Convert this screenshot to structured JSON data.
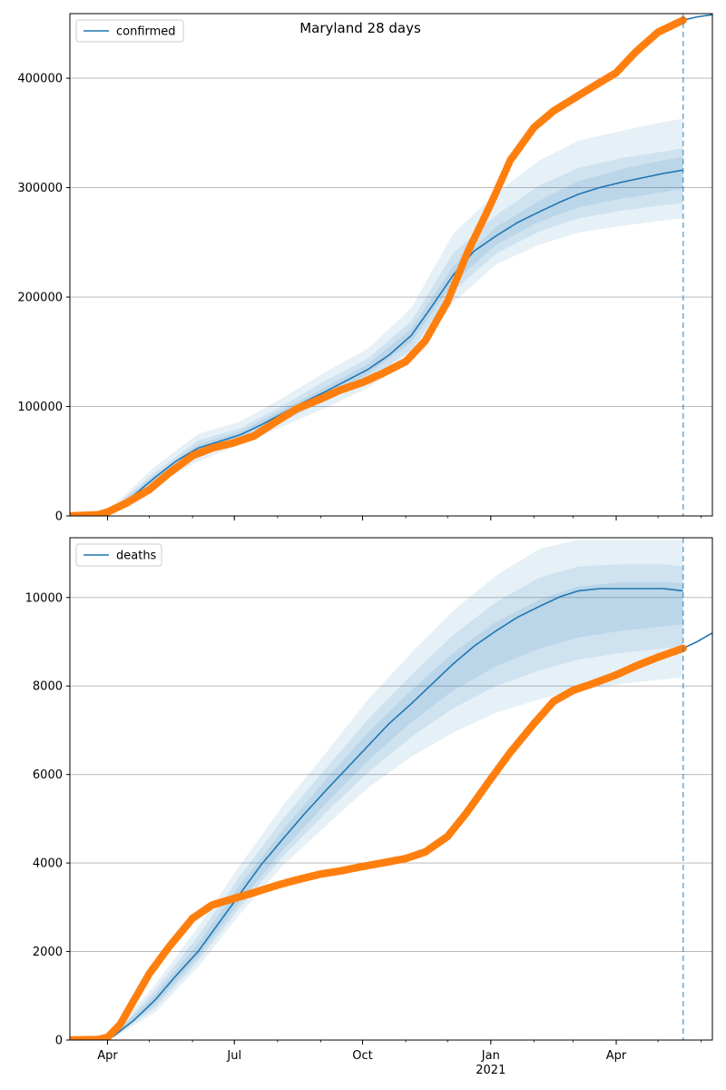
{
  "chart_data": [
    {
      "type": "line",
      "title": "Maryland 28 days",
      "xlabel": "",
      "ylabel": "",
      "legend": {
        "entries": [
          "confirmed"
        ],
        "placement": "top-left"
      },
      "grid": "horizontal",
      "xlim": [
        "2020-03-05",
        "2021-06-09"
      ],
      "ylim": [
        0,
        459000
      ],
      "yticks": [
        0,
        100000,
        200000,
        300000,
        400000
      ],
      "ytick_labels": [
        "0",
        "100000",
        "200000",
        "300000",
        "400000"
      ],
      "xticks": [
        "2020-04-01",
        "2020-07-01",
        "2020-10-01",
        "2021-01-01",
        "2021-04-01"
      ],
      "xtick_labels": [
        "Apr",
        "Jul",
        "Oct",
        "Jan",
        "Apr"
      ],
      "xtick_sublabels": [
        "",
        "",
        "",
        "2021",
        ""
      ],
      "forecast_start": "2021-05-19",
      "series": [
        {
          "name": "confirmed",
          "role": "model-median",
          "color": "#1f77b4",
          "x": [
            "2020-03-05",
            "2020-03-20",
            "2020-04-05",
            "2020-04-20",
            "2020-05-05",
            "2020-05-20",
            "2020-06-05",
            "2020-06-20",
            "2020-07-05",
            "2020-07-20",
            "2020-08-05",
            "2020-08-20",
            "2020-09-05",
            "2020-09-20",
            "2020-10-05",
            "2020-10-20",
            "2020-11-05",
            "2020-11-20",
            "2020-12-05",
            "2020-12-20",
            "2021-01-05",
            "2021-01-20",
            "2021-02-05",
            "2021-02-20",
            "2021-03-05",
            "2021-03-20",
            "2021-04-05",
            "2021-04-20",
            "2021-05-05",
            "2021-05-19"
          ],
          "y": [
            0,
            0,
            5000,
            19000,
            35000,
            50000,
            62000,
            68000,
            74000,
            83000,
            94000,
            104000,
            114000,
            124000,
            134000,
            147000,
            165000,
            192000,
            220000,
            242000,
            256000,
            268000,
            278000,
            287000,
            294000,
            300000,
            305000,
            309000,
            313000,
            316000
          ]
        },
        {
          "name": "",
          "role": "uncertainty-band",
          "color": "#1f77b4",
          "x": [
            "2020-04-05",
            "2020-05-05",
            "2020-06-05",
            "2020-07-05",
            "2020-08-05",
            "2020-09-05",
            "2020-10-05",
            "2020-11-05",
            "2020-12-05",
            "2021-01-05",
            "2021-02-05",
            "2021-03-05",
            "2021-04-05",
            "2021-05-05",
            "2021-05-19"
          ],
          "bands": [
            {
              "lower": [
                2500,
                28000,
                50000,
                65000,
                82000,
                99000,
                117000,
                145000,
                195000,
                230000,
                248000,
                259000,
                265000,
                270000,
                272000
              ],
              "upper": [
                9500,
                45000,
                75000,
                86000,
                108000,
                132000,
                153000,
                190000,
                258000,
                295000,
                325000,
                343000,
                352000,
                360000,
                363000
              ]
            },
            {
              "lower": [
                3500,
                31000,
                55000,
                69000,
                87000,
                105000,
                124000,
                152000,
                205000,
                240000,
                260000,
                272000,
                279000,
                284000,
                286000
              ],
              "upper": [
                7500,
                40000,
                69000,
                80000,
                101000,
                124000,
                144000,
                178000,
                240000,
                275000,
                302000,
                318000,
                327000,
                333000,
                336000
              ]
            },
            {
              "lower": [
                4200,
                33000,
                59000,
                71500,
                90500,
                110000,
                129500,
                159000,
                213000,
                248000,
                269000,
                282000,
                290000,
                296000,
                299000
              ],
              "upper": [
                6000,
                37500,
                65500,
                77000,
                97500,
                118000,
                139000,
                171000,
                228000,
                264000,
                288000,
                306000,
                317000,
                325000,
                328000
              ]
            }
          ]
        },
        {
          "name": "",
          "role": "observed",
          "color": "#ff7f0e",
          "x": [
            "2020-03-05",
            "2020-03-25",
            "2020-04-01",
            "2020-04-15",
            "2020-05-01",
            "2020-05-15",
            "2020-06-01",
            "2020-06-15",
            "2020-07-01",
            "2020-07-15",
            "2020-08-01",
            "2020-08-15",
            "2020-09-01",
            "2020-09-15",
            "2020-10-01",
            "2020-10-15",
            "2020-11-01",
            "2020-11-15",
            "2020-12-01",
            "2020-12-15",
            "2021-01-01",
            "2021-01-15",
            "2021-02-01",
            "2021-02-15",
            "2021-03-01",
            "2021-03-15",
            "2021-04-01",
            "2021-04-15",
            "2021-05-01",
            "2021-05-19"
          ],
          "y": [
            0,
            1000,
            3500,
            12000,
            24000,
            39000,
            55000,
            62000,
            67000,
            73000,
            87000,
            98000,
            107000,
            115000,
            122000,
            130000,
            141000,
            160000,
            196000,
            240000,
            285000,
            325000,
            355000,
            370000,
            381000,
            392000,
            405000,
            424000,
            442000,
            453000
          ]
        },
        {
          "name": "",
          "role": "post-forecast",
          "color": "#1f77b4",
          "x": [
            "2021-05-19",
            "2021-05-29",
            "2021-06-09"
          ],
          "y": [
            453000,
            456000,
            458000
          ]
        }
      ]
    },
    {
      "type": "line",
      "title": "",
      "xlabel": "",
      "ylabel": "",
      "legend": {
        "entries": [
          "deaths"
        ],
        "placement": "top-left"
      },
      "grid": "horizontal",
      "xlim": [
        "2020-03-05",
        "2021-06-09"
      ],
      "ylim": [
        0,
        11350
      ],
      "yticks": [
        0,
        2000,
        4000,
        6000,
        8000,
        10000
      ],
      "ytick_labels": [
        "0",
        "2000",
        "4000",
        "6000",
        "8000",
        "10000"
      ],
      "xticks": [
        "2020-04-01",
        "2020-07-01",
        "2020-10-01",
        "2021-01-01",
        "2021-04-01"
      ],
      "xtick_labels": [
        "Apr",
        "Jul",
        "Oct",
        "Jan",
        "Apr"
      ],
      "xtick_sublabels": [
        "",
        "",
        "",
        "2021",
        ""
      ],
      "forecast_start": "2021-05-19",
      "series": [
        {
          "name": "deaths",
          "role": "model-median",
          "color": "#1f77b4",
          "x": [
            "2020-03-05",
            "2020-03-25",
            "2020-04-05",
            "2020-04-20",
            "2020-05-05",
            "2020-05-20",
            "2020-06-05",
            "2020-06-20",
            "2020-07-05",
            "2020-07-20",
            "2020-08-05",
            "2020-08-20",
            "2020-09-05",
            "2020-09-20",
            "2020-10-05",
            "2020-10-20",
            "2020-11-05",
            "2020-11-20",
            "2020-12-05",
            "2020-12-20",
            "2021-01-05",
            "2021-01-20",
            "2021-02-05",
            "2021-02-20",
            "2021-03-05",
            "2021-03-20",
            "2021-04-05",
            "2021-04-20",
            "2021-05-05",
            "2021-05-19"
          ],
          "y": [
            0,
            0,
            80,
            450,
            900,
            1450,
            2000,
            2650,
            3300,
            3950,
            4550,
            5100,
            5650,
            6150,
            6650,
            7150,
            7600,
            8050,
            8500,
            8900,
            9250,
            9550,
            9800,
            10020,
            10150,
            10200,
            10200,
            10200,
            10200,
            10150
          ]
        },
        {
          "name": "",
          "role": "uncertainty-band",
          "color": "#1f77b4",
          "x": [
            "2020-04-05",
            "2020-05-05",
            "2020-06-05",
            "2020-07-05",
            "2020-08-05",
            "2020-09-05",
            "2020-10-05",
            "2020-11-05",
            "2020-12-05",
            "2021-01-05",
            "2021-02-05",
            "2021-03-05",
            "2021-04-05",
            "2021-05-05",
            "2021-05-19"
          ],
          "bands": [
            {
              "lower": [
                40,
                620,
                1650,
                2850,
                3950,
                4850,
                5700,
                6400,
                6950,
                7400,
                7700,
                7900,
                8050,
                8150,
                8200
              ],
              "upper": [
                130,
                1250,
                2550,
                3950,
                5300,
                6500,
                7700,
                8750,
                9700,
                10500,
                11100,
                11300,
                11300,
                11300,
                11300
              ]
            },
            {
              "lower": [
                55,
                720,
                1780,
                3000,
                4150,
                5150,
                6050,
                6850,
                7500,
                8000,
                8350,
                8600,
                8750,
                8850,
                8900
              ],
              "upper": [
                110,
                1120,
                2350,
                3700,
                5000,
                6150,
                7250,
                8250,
                9150,
                9900,
                10450,
                10700,
                10750,
                10750,
                10700
              ]
            },
            {
              "lower": [
                65,
                800,
                1880,
                3120,
                4300,
                5350,
                6320,
                7180,
                7900,
                8450,
                8850,
                9100,
                9250,
                9350,
                9400
              ],
              "upper": [
                95,
                1020,
                2180,
                3500,
                4750,
                5900,
                6950,
                7900,
                8750,
                9450,
                9950,
                10250,
                10350,
                10350,
                10320
              ]
            }
          ]
        },
        {
          "name": "",
          "role": "observed",
          "color": "#ff7f0e",
          "x": [
            "2020-03-05",
            "2020-03-25",
            "2020-04-01",
            "2020-04-10",
            "2020-04-20",
            "2020-05-01",
            "2020-05-15",
            "2020-06-01",
            "2020-06-15",
            "2020-07-01",
            "2020-07-15",
            "2020-08-01",
            "2020-08-15",
            "2020-09-01",
            "2020-09-15",
            "2020-10-01",
            "2020-10-15",
            "2020-11-01",
            "2020-11-15",
            "2020-12-01",
            "2020-12-15",
            "2021-01-01",
            "2021-01-15",
            "2021-02-01",
            "2021-02-15",
            "2021-03-01",
            "2021-03-15",
            "2021-04-01",
            "2021-04-15",
            "2021-05-01",
            "2021-05-19"
          ],
          "y": [
            0,
            10,
            60,
            350,
            900,
            1500,
            2100,
            2750,
            3050,
            3200,
            3330,
            3500,
            3620,
            3750,
            3820,
            3920,
            4000,
            4100,
            4250,
            4600,
            5150,
            5900,
            6500,
            7150,
            7650,
            7900,
            8050,
            8250,
            8450,
            8650,
            8850
          ]
        },
        {
          "name": "",
          "role": "post-forecast",
          "color": "#1f77b4",
          "x": [
            "2021-05-19",
            "2021-05-29",
            "2021-06-09"
          ],
          "y": [
            8850,
            9000,
            9200
          ]
        }
      ]
    }
  ]
}
